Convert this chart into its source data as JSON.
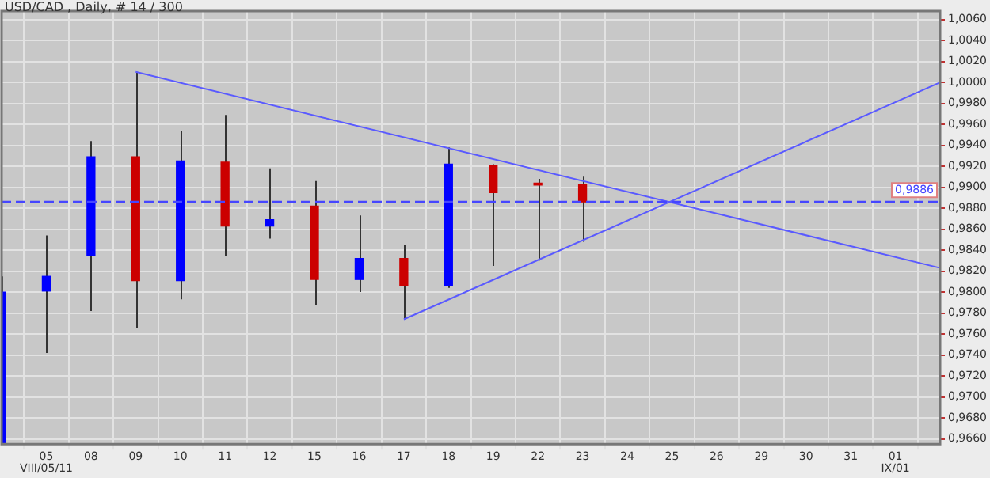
{
  "chart_data": {
    "type": "candlestick",
    "title": "USD/CAD , Daily, # 14 / 300",
    "categories": [
      null,
      "05",
      "08",
      "09",
      "10",
      "11",
      "12",
      "15",
      "16",
      "17",
      "18",
      "19",
      "22",
      "23",
      "24",
      "25",
      "26",
      "29",
      "30",
      "31",
      "01",
      null
    ],
    "ohlc": [
      [
        0.9656,
        0.9815,
        0.9656,
        0.98
      ],
      [
        0.9801,
        0.9854,
        0.9742,
        0.9815
      ],
      [
        0.9835,
        0.9944,
        0.9782,
        0.9929
      ],
      [
        0.9929,
        1.001,
        0.9766,
        0.9811
      ],
      [
        0.9811,
        0.9954,
        0.9793,
        0.9925
      ],
      [
        0.9924,
        0.9969,
        0.9834,
        0.9863
      ],
      [
        0.9863,
        0.9918,
        0.9851,
        0.9869
      ],
      [
        0.9882,
        0.9906,
        0.9788,
        0.9812
      ],
      [
        0.9812,
        0.9873,
        0.98,
        0.9832
      ],
      [
        0.9832,
        0.9845,
        0.9774,
        0.9806
      ],
      [
        0.9806,
        0.9938,
        0.9804,
        0.9922
      ],
      [
        0.9921,
        0.9922,
        0.9825,
        0.9895
      ],
      [
        0.9904,
        0.9908,
        0.983,
        0.9902
      ],
      [
        0.9903,
        0.991,
        0.9848,
        0.9886
      ],
      null,
      null,
      null,
      null,
      null,
      null,
      null,
      null
    ],
    "colors": [
      "#0000ff",
      "#0000ff",
      "#0000ff",
      "#cc0000",
      "#0000ff",
      "#cc0000",
      "#0000ff",
      "#cc0000",
      "#0000ff",
      "#cc0000",
      "#0000ff",
      "#cc0000",
      "#cc0000",
      "#cc0000",
      null,
      null,
      null,
      null,
      null,
      null,
      null,
      null
    ],
    "series": [
      {
        "type": "line",
        "color": "#5a5aff",
        "values": [
          null,
          null,
          null,
          1.001,
          null,
          null,
          null,
          null,
          null,
          null,
          null,
          null,
          null,
          null,
          null,
          null,
          null,
          null,
          null,
          null,
          null,
          0.9823
        ]
      },
      {
        "type": "line",
        "color": "#5a5aff",
        "values": [
          null,
          null,
          null,
          null,
          null,
          null,
          null,
          null,
          null,
          0.9774,
          null,
          null,
          null,
          null,
          null,
          null,
          null,
          null,
          null,
          null,
          null,
          1.0
        ]
      }
    ],
    "ylim": [
      0.9655,
      1.0068
    ],
    "yticks": [
      {
        "value": 0.966,
        "label": "0,9660"
      },
      {
        "value": 0.968,
        "label": "0,9680"
      },
      {
        "value": 0.97,
        "label": "0,9700"
      },
      {
        "value": 0.972,
        "label": "0,9720"
      },
      {
        "value": 0.974,
        "label": "0,9740"
      },
      {
        "value": 0.976,
        "label": "0,9760"
      },
      {
        "value": 0.978,
        "label": "0,9780"
      },
      {
        "value": 0.98,
        "label": "0,9800"
      },
      {
        "value": 0.982,
        "label": "0,9820"
      },
      {
        "value": 0.984,
        "label": "0,9840"
      },
      {
        "value": 0.986,
        "label": "0,9860"
      },
      {
        "value": 0.988,
        "label": "0,9880"
      },
      {
        "value": 0.99,
        "label": "0,9900"
      },
      {
        "value": 0.992,
        "label": "0,9920"
      },
      {
        "value": 0.994,
        "label": "0,9940"
      },
      {
        "value": 0.996,
        "label": "0,9960"
      },
      {
        "value": 0.998,
        "label": "0,9980"
      },
      {
        "value": 1.0,
        "label": "1,0000"
      },
      {
        "value": 1.002,
        "label": "1,0020"
      },
      {
        "value": 1.004,
        "label": "1,0040"
      },
      {
        "value": 1.006,
        "label": "1,0060"
      }
    ],
    "ref_lines": [
      {
        "axis": "y",
        "value": 0.9886,
        "label": "0,9886",
        "color": "#4646ff",
        "line_style": "dashed"
      }
    ],
    "annotations": [
      "VIII/05/11",
      "IX/01"
    ],
    "grid": true,
    "legend": false
  }
}
